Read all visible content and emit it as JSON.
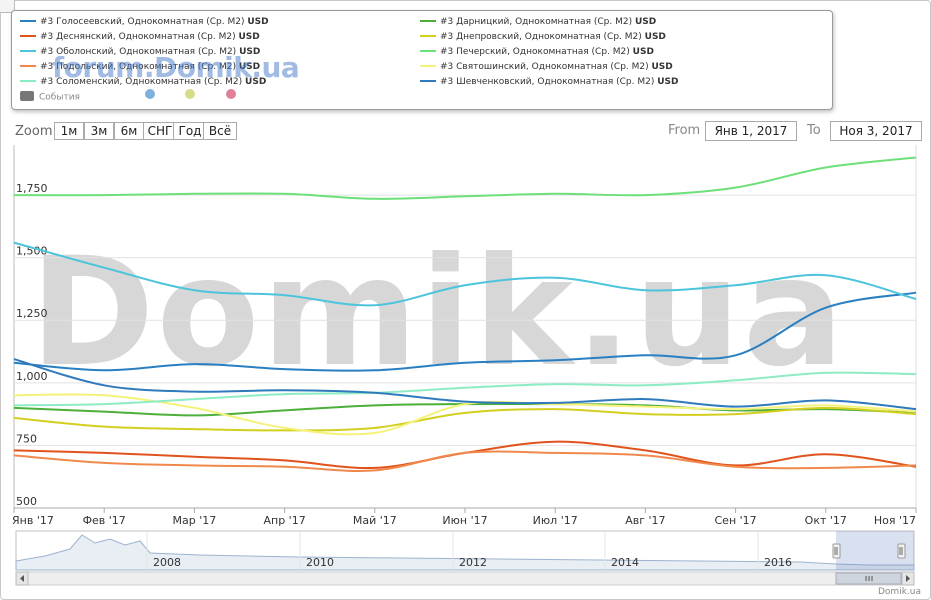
{
  "legend": {
    "events_label": "События",
    "unit_suffix": "USD",
    "watermark_small": "forum.Domik.ua"
  },
  "toolbar": {
    "zoom_label": "Zoom",
    "range_buttons": [
      "1м",
      "3м",
      "6м",
      "СНГ",
      "Год",
      "Всё"
    ],
    "from_label": "From",
    "to_label": "To",
    "from_value": "Янв 1, 2017",
    "to_value": "Ноя 3, 2017"
  },
  "watermark": "Domik.ua",
  "credit": "Domik.ua",
  "navigator": {
    "year_labels": [
      "2008",
      "2010",
      "2012",
      "2014",
      "2016"
    ]
  },
  "chart_data": {
    "type": "line",
    "x": [
      "Янв '17",
      "Фев '17",
      "Мар '17",
      "Апр '17",
      "Май '17",
      "Июн '17",
      "Июл '17",
      "Авг '17",
      "Сен '17",
      "Окт '17",
      "Ноя '17"
    ],
    "ylim": [
      500,
      1950
    ],
    "yticks": [
      "500",
      "750",
      "1,000",
      "1,250",
      "1,500",
      "1,750"
    ],
    "ytick_values": [
      500,
      750,
      1000,
      1250,
      1500,
      1750
    ],
    "grid": true,
    "legend_position": "top",
    "series": [
      {
        "name": "#3 Голосеевский, Однокомнатная (Ср. М2)",
        "color": "#2a7fc1",
        "values": [
          1080,
          1050,
          1075,
          1055,
          1050,
          1080,
          1090,
          1110,
          1110,
          1300,
          1360
        ]
      },
      {
        "name": "#3 Дарницкий, Однокомнатная (Ср. М2)",
        "color": "#4caf3a",
        "values": [
          900,
          885,
          870,
          890,
          910,
          915,
          915,
          910,
          890,
          895,
          880
        ]
      },
      {
        "name": "#3 Деснянский, Однокомнатная (Ср. М2)",
        "color": "#e0531c",
        "values": [
          730,
          720,
          705,
          690,
          660,
          720,
          765,
          730,
          670,
          715,
          665
        ]
      },
      {
        "name": "#3 Днепровский, Однокомнатная (Ср. М2)",
        "color": "#d4cf1e",
        "values": [
          860,
          825,
          815,
          810,
          820,
          880,
          895,
          875,
          875,
          900,
          875
        ]
      },
      {
        "name": "#3 Оболонский, Однокомнатная (Ср. М2)",
        "color": "#4cc4dc",
        "values": [
          1560,
          1460,
          1370,
          1350,
          1310,
          1390,
          1420,
          1370,
          1390,
          1430,
          1335
        ]
      },
      {
        "name": "#3 Печерский, Однокомнатная (Ср. М2)",
        "color": "#6ee07a",
        "values": [
          1750,
          1750,
          1755,
          1755,
          1735,
          1745,
          1755,
          1750,
          1780,
          1860,
          1900
        ]
      },
      {
        "name": "#3 Подольский, Однокомнатная (Ср. М2)",
        "color": "#f0884c",
        "values": [
          710,
          680,
          670,
          665,
          650,
          720,
          720,
          710,
          665,
          660,
          670
        ]
      },
      {
        "name": "#3 Святошинский, Однокомнатная (Ср. М2)",
        "color": "#f4f27a",
        "values": [
          950,
          950,
          900,
          820,
          800,
          915,
          915,
          905,
          895,
          910,
          885
        ]
      },
      {
        "name": "#3 Соломенский, Однокомнатная (Ср. М2)",
        "color": "#8eecc4",
        "values": [
          910,
          915,
          935,
          955,
          960,
          980,
          995,
          990,
          1010,
          1040,
          1035
        ]
      },
      {
        "name": "#3 Шевченковский, Однокомнатная (Ср. М2)",
        "color": "#2f79bc",
        "values": [
          1095,
          990,
          965,
          970,
          960,
          925,
          920,
          935,
          905,
          930,
          895
        ]
      }
    ]
  }
}
